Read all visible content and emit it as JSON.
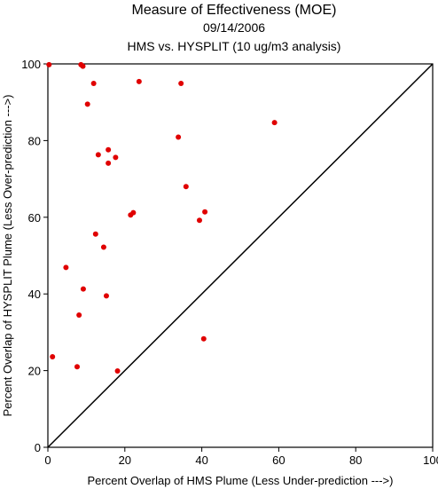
{
  "chart_data": {
    "type": "scatter",
    "title": "Measure of Effectiveness (MOE)",
    "subtitle_date": "09/14/2006",
    "subtitle_analysis": "HMS vs. HYSPLIT  (10 ug/m3 analysis)",
    "xlabel": "Percent Overlap of HMS Plume (Less Under-prediction --->)",
    "ylabel": "Percent Overlap of HYSPLIT Plume (Less Over-prediction --->)",
    "xlim": [
      0,
      100
    ],
    "ylim": [
      0,
      100
    ],
    "x_ticks": [
      "0",
      "20",
      "40",
      "60",
      "80",
      "100"
    ],
    "y_ticks": [
      "0",
      "20",
      "40",
      "60",
      "80",
      "100"
    ],
    "grid": false,
    "reference_line": "y = x",
    "point_color": "#e00000",
    "series": [
      {
        "points": [
          [
            0.3,
            99.8
          ],
          [
            8.6,
            99.8
          ],
          [
            9.1,
            99.4
          ],
          [
            11.9,
            94.9
          ],
          [
            23.7,
            95.4
          ],
          [
            34.6,
            94.9
          ],
          [
            10.3,
            89.5
          ],
          [
            58.9,
            84.7
          ],
          [
            33.9,
            80.9
          ],
          [
            15.7,
            77.6
          ],
          [
            13.1,
            76.3
          ],
          [
            17.6,
            75.6
          ],
          [
            15.7,
            74.1
          ],
          [
            35.9,
            68.0
          ],
          [
            22.2,
            61.2
          ],
          [
            21.5,
            60.6
          ],
          [
            40.8,
            61.4
          ],
          [
            39.4,
            59.2
          ],
          [
            12.4,
            55.6
          ],
          [
            14.5,
            52.2
          ],
          [
            4.7,
            46.9
          ],
          [
            9.2,
            41.3
          ],
          [
            15.2,
            39.5
          ],
          [
            8.1,
            34.5
          ],
          [
            40.5,
            28.3
          ],
          [
            1.2,
            23.6
          ],
          [
            7.6,
            21.0
          ],
          [
            18.1,
            19.9
          ]
        ]
      }
    ]
  }
}
